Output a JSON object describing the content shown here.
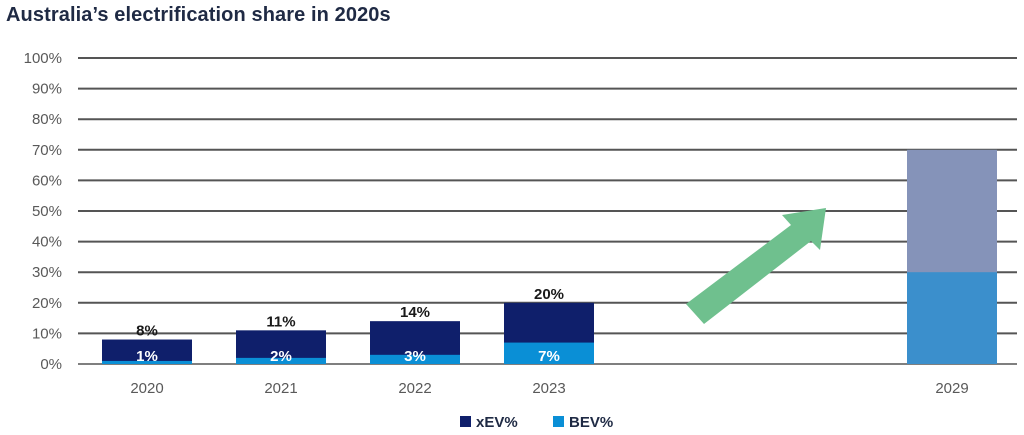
{
  "chart_data": {
    "type": "bar",
    "title": "Australia’s electrification share in 2020s",
    "categories": [
      "2020",
      "2021",
      "2022",
      "2023",
      "2029"
    ],
    "series": [
      {
        "name": "xEV%",
        "values": [
          8,
          11,
          14,
          20,
          70
        ],
        "labels": [
          "8%",
          "11%",
          "14%",
          "20%",
          ""
        ]
      },
      {
        "name": "BEV%",
        "values": [
          1,
          2,
          3,
          7,
          30
        ],
        "labels": [
          "1%",
          "2%",
          "3%",
          "7%",
          ""
        ]
      }
    ],
    "projected_categories": [
      "2029"
    ],
    "ylim": [
      0,
      100
    ],
    "yticks": [
      "0%",
      "10%",
      "20%",
      "30%",
      "40%",
      "50%",
      "60%",
      "70%",
      "80%",
      "90%",
      "100%"
    ],
    "grid": true,
    "legend_position": "bottom",
    "annotations": [
      "green upward arrow indicating growth trend"
    ],
    "colors": {
      "xev": "#0f1f6b",
      "bev": "#0a8fd6",
      "xev_projected": "#8593b9",
      "bev_projected": "#3b8fcc",
      "grid": "#555555",
      "arrow": "#6fc08e"
    }
  }
}
